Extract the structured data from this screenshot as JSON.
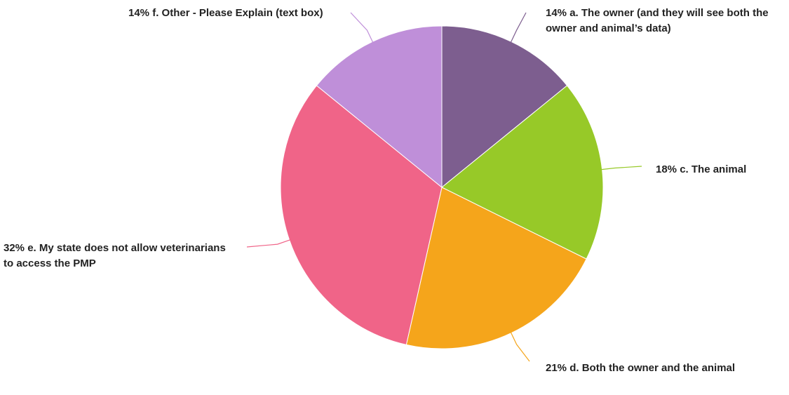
{
  "chart_data": {
    "type": "pie",
    "categories": [
      "a. The owner (and they will see both the owner and animal’s data)",
      "c. The animal",
      "d. Both the owner and the animal",
      "e. My state does not allow veterinarians to access the PMP",
      "f. Other - Please Explain (text box)"
    ],
    "values": [
      14,
      18,
      21,
      32,
      14
    ],
    "value_labels": [
      "14%",
      "18%",
      "21%",
      "32%",
      "14%"
    ],
    "colors": [
      "#7d5e8f",
      "#97c928",
      "#f5a51b",
      "#f06488",
      "#bf8fd9"
    ]
  }
}
